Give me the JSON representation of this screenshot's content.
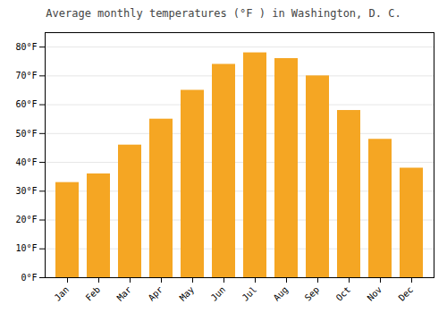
{
  "chart_data": {
    "type": "bar",
    "title": "Average monthly temperatures (°F ) in Washington, D. C.",
    "categories": [
      "Jan",
      "Feb",
      "Mar",
      "Apr",
      "May",
      "Jun",
      "Jul",
      "Aug",
      "Sep",
      "Oct",
      "Nov",
      "Dec"
    ],
    "values": [
      33,
      36,
      46,
      55,
      65,
      74,
      78,
      76,
      70,
      58,
      48,
      38
    ],
    "color": "#F5A623",
    "ylim": [
      0,
      85
    ],
    "yticks": [
      {
        "value": 0,
        "label": "0°F"
      },
      {
        "value": 10,
        "label": "10°F"
      },
      {
        "value": 20,
        "label": "20°F"
      },
      {
        "value": 30,
        "label": "30°F"
      },
      {
        "value": 40,
        "label": "40°F"
      },
      {
        "value": 50,
        "label": "50°F"
      },
      {
        "value": 60,
        "label": "60°F"
      },
      {
        "value": 70,
        "label": "70°F"
      },
      {
        "value": 80,
        "label": "80°F"
      }
    ],
    "grid": true
  }
}
